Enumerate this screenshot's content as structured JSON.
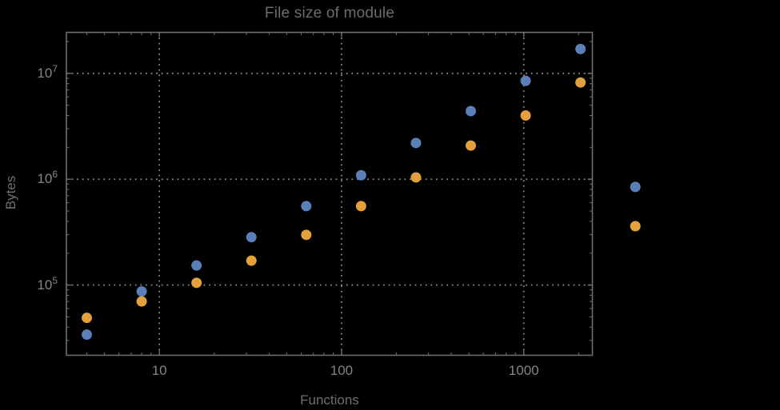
{
  "chart_data": {
    "type": "scatter",
    "title": "File size of module",
    "xlabel": "Functions",
    "ylabel": "Bytes",
    "x_scale": "log",
    "y_scale": "log",
    "xlim": [
      3.09,
      2380
    ],
    "ylim": [
      21700,
      24400000
    ],
    "grid": "dotted lines at decade ticks, both axes",
    "legend": "none",
    "x_ticks": [
      {
        "value": 10,
        "label": "10"
      },
      {
        "value": 100,
        "label": "100"
      },
      {
        "value": 1000,
        "label": "1000"
      }
    ],
    "y_ticks": [
      {
        "value": 100000,
        "base": "10",
        "exp": "5"
      },
      {
        "value": 1000000,
        "base": "10",
        "exp": "6"
      },
      {
        "value": 10000000,
        "base": "10",
        "exp": "7"
      }
    ],
    "series": [
      {
        "name": "blue",
        "color": "#5B80B7",
        "points": [
          [
            4,
            34000
          ],
          [
            8,
            87000
          ],
          [
            16,
            153000
          ],
          [
            32,
            283000
          ],
          [
            64,
            557000
          ],
          [
            128,
            1090000
          ],
          [
            256,
            2200000
          ],
          [
            512,
            4400000
          ],
          [
            1024,
            8500000
          ],
          [
            2048,
            17000000
          ],
          [
            4096,
            845000
          ]
        ]
      },
      {
        "name": "orange",
        "color": "#E2A13C",
        "points": [
          [
            4,
            49000
          ],
          [
            8,
            70000
          ],
          [
            16,
            105000
          ],
          [
            32,
            170000
          ],
          [
            64,
            298000
          ],
          [
            128,
            557000
          ],
          [
            256,
            1040000
          ],
          [
            512,
            2080000
          ],
          [
            1024,
            4000000
          ],
          [
            2048,
            8200000
          ],
          [
            4096,
            360000
          ]
        ]
      }
    ],
    "colors": {
      "background": "#000000",
      "frame": "#6E6E6E",
      "grid": "#8A8A8A",
      "tick_label": "#848484",
      "title": "#6B6B6B",
      "axis_label": "#6F6F6F"
    }
  }
}
